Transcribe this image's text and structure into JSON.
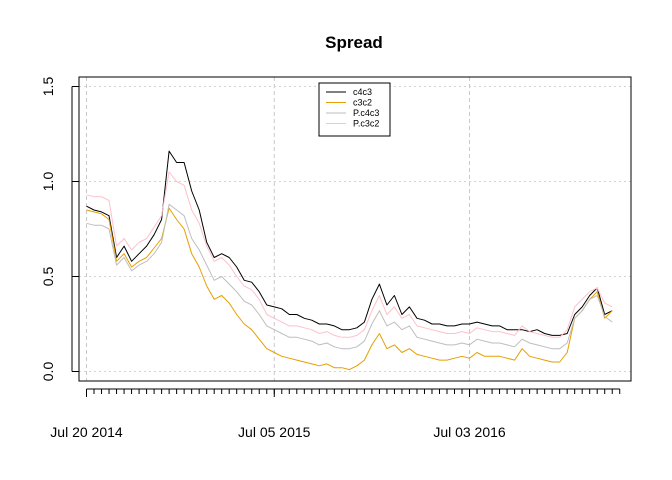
{
  "chart_data": {
    "type": "line",
    "title": "Spread",
    "xlabel": "",
    "ylabel": "",
    "ylim": [
      -0.05,
      1.55
    ],
    "y_ticks": [
      "0.0",
      "0.5",
      "1.0",
      "1.5"
    ],
    "x_range": [
      "2014-07-06",
      "2017-04-30"
    ],
    "x_ticks": [
      "Jul 20 2014",
      "Jul 05 2015",
      "Jul 03 2016"
    ],
    "x_tick_dates": [
      "2014-07-20",
      "2015-07-05",
      "2016-07-03"
    ],
    "grid": true,
    "legend_position": "top-center",
    "colors": {
      "c4c3": "#000000",
      "c3c2": "#E69F00",
      "P.c4c3": "#BEBEBE",
      "P.c3c2": "#FFC0CB"
    },
    "x": [
      "2014-07-20",
      "2014-08-03",
      "2014-08-17",
      "2014-08-31",
      "2014-09-14",
      "2014-09-28",
      "2014-10-12",
      "2014-10-26",
      "2014-11-09",
      "2014-11-23",
      "2014-12-07",
      "2014-12-21",
      "2015-01-04",
      "2015-01-18",
      "2015-02-01",
      "2015-02-15",
      "2015-03-01",
      "2015-03-15",
      "2015-03-29",
      "2015-04-12",
      "2015-04-26",
      "2015-05-10",
      "2015-05-24",
      "2015-06-07",
      "2015-06-21",
      "2015-07-05",
      "2015-07-19",
      "2015-08-02",
      "2015-08-16",
      "2015-08-30",
      "2015-09-13",
      "2015-09-27",
      "2015-10-11",
      "2015-10-25",
      "2015-11-08",
      "2015-11-22",
      "2015-12-06",
      "2015-12-20",
      "2016-01-03",
      "2016-01-17",
      "2016-01-31",
      "2016-02-14",
      "2016-02-28",
      "2016-03-13",
      "2016-03-27",
      "2016-04-10",
      "2016-04-24",
      "2016-05-08",
      "2016-05-22",
      "2016-06-05",
      "2016-06-19",
      "2016-07-03",
      "2016-07-17",
      "2016-07-31",
      "2016-08-14",
      "2016-08-28",
      "2016-09-11",
      "2016-09-25",
      "2016-10-09",
      "2016-10-23",
      "2016-11-06",
      "2016-11-20",
      "2016-12-04",
      "2016-12-18",
      "2017-01-01",
      "2017-01-15",
      "2017-01-29",
      "2017-02-12",
      "2017-02-26",
      "2017-03-12",
      "2017-03-26"
    ],
    "series": [
      {
        "name": "c4c3",
        "values": [
          0.87,
          0.85,
          0.84,
          0.82,
          0.6,
          0.66,
          0.58,
          0.62,
          0.66,
          0.72,
          0.8,
          1.16,
          1.1,
          1.1,
          0.95,
          0.85,
          0.68,
          0.6,
          0.62,
          0.6,
          0.55,
          0.48,
          0.47,
          0.42,
          0.35,
          0.34,
          0.33,
          0.3,
          0.3,
          0.28,
          0.27,
          0.25,
          0.25,
          0.24,
          0.22,
          0.22,
          0.23,
          0.26,
          0.38,
          0.46,
          0.35,
          0.4,
          0.3,
          0.34,
          0.28,
          0.27,
          0.25,
          0.25,
          0.24,
          0.24,
          0.25,
          0.25,
          0.26,
          0.25,
          0.24,
          0.24,
          0.22,
          0.22,
          0.22,
          0.21,
          0.22,
          0.2,
          0.19,
          0.19,
          0.2,
          0.3,
          0.34,
          0.4,
          0.44,
          0.3,
          0.32
        ]
      },
      {
        "name": "c3c2",
        "values": [
          0.85,
          0.84,
          0.83,
          0.8,
          0.58,
          0.62,
          0.55,
          0.58,
          0.6,
          0.65,
          0.7,
          0.86,
          0.8,
          0.75,
          0.62,
          0.55,
          0.45,
          0.38,
          0.4,
          0.36,
          0.3,
          0.25,
          0.22,
          0.17,
          0.12,
          0.1,
          0.08,
          0.07,
          0.06,
          0.05,
          0.04,
          0.03,
          0.04,
          0.02,
          0.02,
          0.01,
          0.03,
          0.06,
          0.14,
          0.2,
          0.12,
          0.14,
          0.1,
          0.12,
          0.09,
          0.08,
          0.07,
          0.06,
          0.06,
          0.07,
          0.08,
          0.07,
          0.1,
          0.08,
          0.08,
          0.08,
          0.07,
          0.06,
          0.12,
          0.08,
          0.07,
          0.06,
          0.05,
          0.05,
          0.1,
          0.28,
          0.32,
          0.38,
          0.42,
          0.28,
          0.32
        ]
      },
      {
        "name": "P.c4c3",
        "values": [
          0.78,
          0.77,
          0.77,
          0.75,
          0.56,
          0.6,
          0.53,
          0.56,
          0.58,
          0.62,
          0.68,
          0.88,
          0.85,
          0.82,
          0.7,
          0.64,
          0.56,
          0.48,
          0.5,
          0.46,
          0.42,
          0.37,
          0.35,
          0.3,
          0.24,
          0.22,
          0.2,
          0.18,
          0.18,
          0.17,
          0.16,
          0.14,
          0.15,
          0.13,
          0.12,
          0.12,
          0.13,
          0.16,
          0.25,
          0.32,
          0.24,
          0.26,
          0.22,
          0.24,
          0.18,
          0.17,
          0.16,
          0.15,
          0.14,
          0.14,
          0.15,
          0.14,
          0.17,
          0.16,
          0.15,
          0.15,
          0.14,
          0.13,
          0.17,
          0.15,
          0.14,
          0.13,
          0.12,
          0.12,
          0.15,
          0.28,
          0.32,
          0.38,
          0.4,
          0.29,
          0.26
        ]
      },
      {
        "name": "P.c3c2",
        "values": [
          0.93,
          0.92,
          0.92,
          0.9,
          0.66,
          0.7,
          0.64,
          0.68,
          0.7,
          0.76,
          0.82,
          1.05,
          1.0,
          0.98,
          0.85,
          0.78,
          0.66,
          0.58,
          0.6,
          0.56,
          0.5,
          0.45,
          0.43,
          0.38,
          0.3,
          0.28,
          0.26,
          0.24,
          0.24,
          0.23,
          0.22,
          0.2,
          0.21,
          0.19,
          0.18,
          0.18,
          0.19,
          0.22,
          0.32,
          0.4,
          0.3,
          0.34,
          0.28,
          0.3,
          0.24,
          0.23,
          0.22,
          0.21,
          0.2,
          0.2,
          0.21,
          0.2,
          0.23,
          0.22,
          0.21,
          0.21,
          0.2,
          0.19,
          0.24,
          0.21,
          0.2,
          0.19,
          0.18,
          0.18,
          0.22,
          0.34,
          0.38,
          0.42,
          0.44,
          0.36,
          0.34
        ]
      }
    ]
  }
}
